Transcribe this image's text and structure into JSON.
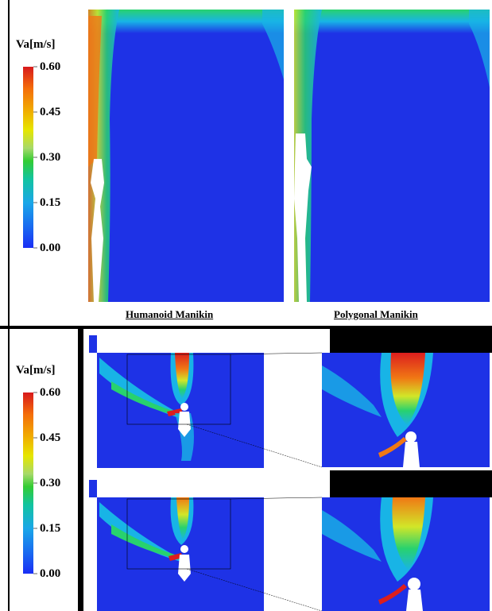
{
  "colorbar": {
    "title": "Va[m/s]",
    "ticks": [
      "0.60",
      "0.45",
      "0.30",
      "0.15",
      "0.00"
    ],
    "colors": [
      "#d7191c",
      "#f46d0a",
      "#f0b000",
      "#e6e600",
      "#a6d96a",
      "#33cc33",
      "#12c4a0",
      "#1aa7e8",
      "#1a6cf0",
      "#1a2ef5"
    ]
  },
  "top_panel": {
    "captions": {
      "left": "Humanoid  Manikin",
      "right": "Polygonal  Manikin"
    }
  },
  "colors": {
    "field_blue": "#1e32e6",
    "low_cyan": "#18b4e6",
    "mid_green": "#28d26e",
    "mid_yellow": "#d2e628",
    "high_orange": "#f07814",
    "peak_red": "#dc1e1e"
  }
}
